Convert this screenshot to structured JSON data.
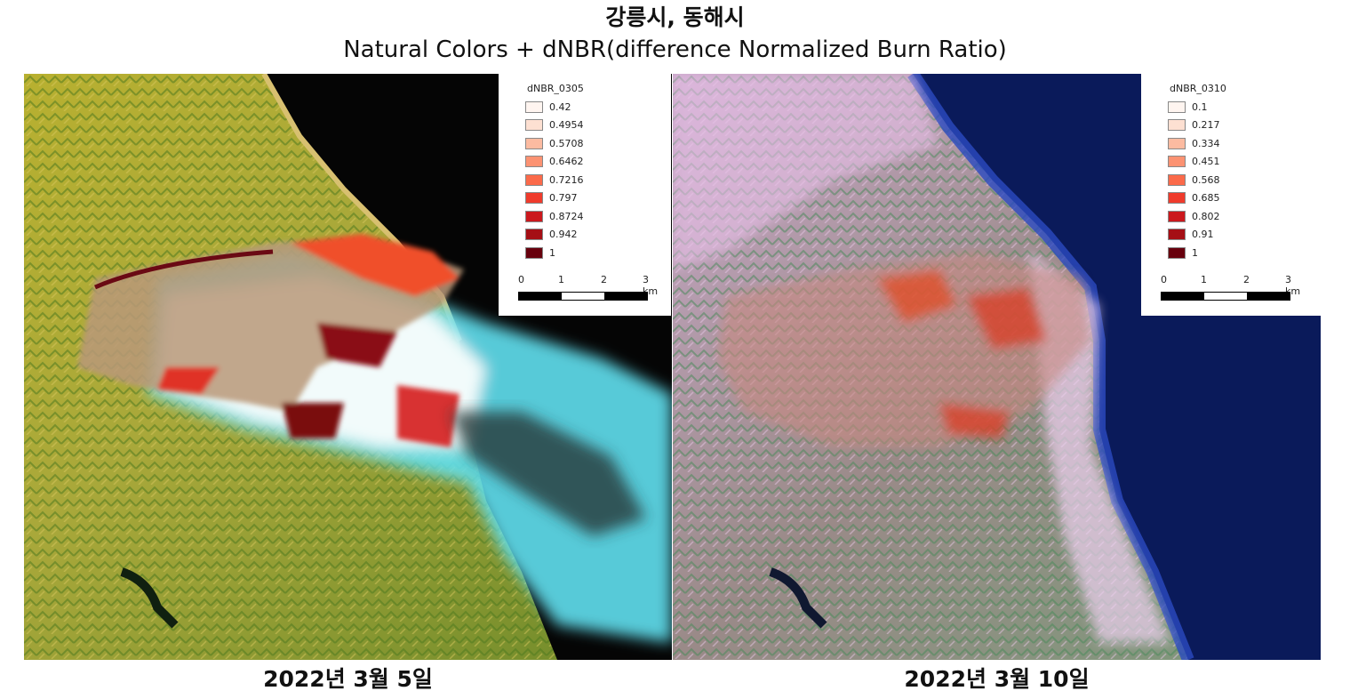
{
  "header": {
    "title": "강릉시, 동해시",
    "subtitle": "Natural Colors + dNBR(difference Normalized Burn Ratio)"
  },
  "panels": [
    {
      "date": "2022년 3월 5일",
      "legend": {
        "title": "dNBR_0305",
        "items": [
          {
            "label": "0.42",
            "color": "#fff5f0"
          },
          {
            "label": "0.4954",
            "color": "#fde0d2"
          },
          {
            "label": "0.5708",
            "color": "#fcbba1"
          },
          {
            "label": "0.6462",
            "color": "#fc9272"
          },
          {
            "label": "0.7216",
            "color": "#fb6a4a"
          },
          {
            "label": "0.797",
            "color": "#ef3b2c"
          },
          {
            "label": "0.8724",
            "color": "#cb181d"
          },
          {
            "label": "0.942",
            "color": "#a50f15"
          },
          {
            "label": "1",
            "color": "#67000d"
          }
        ]
      },
      "scale": {
        "ticks": [
          "0",
          "1",
          "2",
          "3 km"
        ]
      }
    },
    {
      "date": "2022년 3월 10일",
      "legend": {
        "title": "dNBR_0310",
        "items": [
          {
            "label": "0.1",
            "color": "#fff5f0"
          },
          {
            "label": "0.217",
            "color": "#fde0d2"
          },
          {
            "label": "0.334",
            "color": "#fcbba1"
          },
          {
            "label": "0.451",
            "color": "#fc9272"
          },
          {
            "label": "0.568",
            "color": "#fb6a4a"
          },
          {
            "label": "0.685",
            "color": "#ef3b2c"
          },
          {
            "label": "0.802",
            "color": "#cb181d"
          },
          {
            "label": "0.91",
            "color": "#a50f15"
          },
          {
            "label": "1",
            "color": "#67000d"
          }
        ]
      },
      "scale": {
        "ticks": [
          "0",
          "1",
          "2",
          "3 km"
        ]
      }
    }
  ]
}
